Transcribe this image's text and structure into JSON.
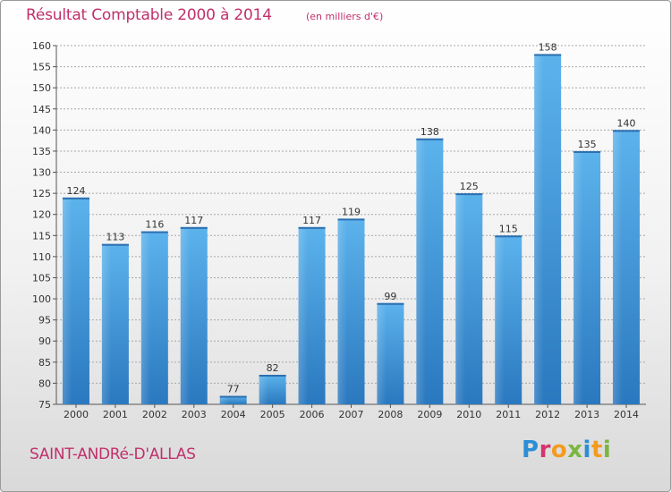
{
  "header": {
    "title": "Résultat Comptable 2000 à 2014",
    "subtitle": "(en milliers d'€)"
  },
  "footer": {
    "commune": "SAINT-ANDRé-D'ALLAS",
    "logo_text": "Proxiti"
  },
  "colors": {
    "bar": "#4a9ee0",
    "title": "#c0306a",
    "grid": "#9a9a9a"
  },
  "chart_data": {
    "type": "bar",
    "title": "Résultat Comptable 2000 à 2014",
    "subtitle": "(en milliers d'€)",
    "xlabel": "",
    "ylabel": "",
    "ylim": [
      75,
      160
    ],
    "y_ticks": [
      75,
      80,
      85,
      90,
      95,
      100,
      105,
      110,
      115,
      120,
      125,
      130,
      135,
      140,
      145,
      150,
      155,
      160
    ],
    "grid": true,
    "categories": [
      "2000",
      "2001",
      "2002",
      "2003",
      "2004",
      "2005",
      "2006",
      "2007",
      "2008",
      "2009",
      "2010",
      "2011",
      "2012",
      "2013",
      "2014"
    ],
    "values": [
      124,
      113,
      116,
      117,
      77,
      82,
      117,
      119,
      99,
      138,
      125,
      115,
      158,
      135,
      140
    ]
  }
}
